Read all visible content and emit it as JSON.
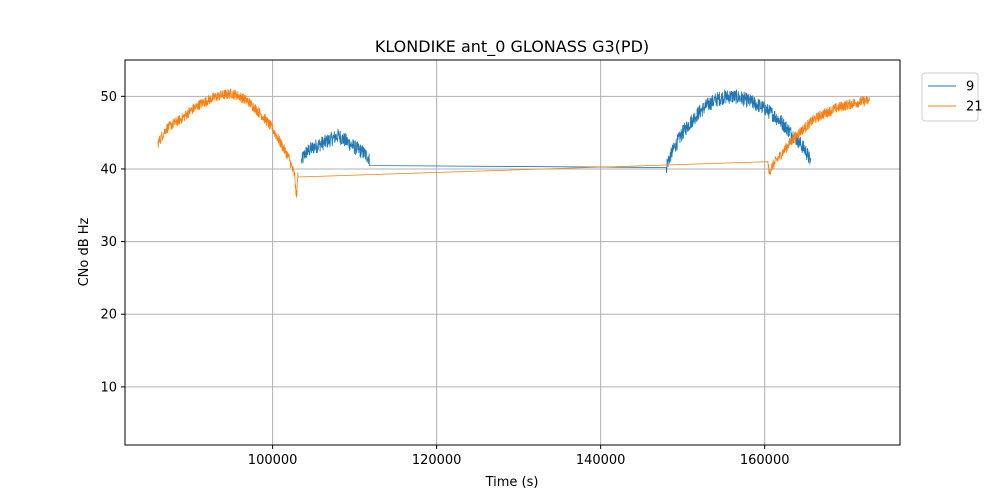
{
  "chart_data": {
    "type": "line",
    "title": "KLONDIKE ant_0 GLONASS G3(PD)",
    "xlabel": "Time (s)",
    "ylabel": "CNo dB Hz",
    "xlim": [
      82000,
      176500
    ],
    "ylim": [
      2,
      55
    ],
    "xticks": [
      100000,
      120000,
      140000,
      160000
    ],
    "xtick_labels": [
      "100000",
      "120000",
      "140000",
      "160000"
    ],
    "yticks": [
      10,
      20,
      30,
      40,
      50
    ],
    "ytick_labels": [
      "10",
      "20",
      "30",
      "40",
      "50"
    ],
    "grid": true,
    "legend_position": "outside-top-right",
    "series": [
      {
        "name": "9",
        "color": "#1f77b4",
        "noise": 1.0,
        "points": [
          [
            103500,
            41.0
          ],
          [
            104000,
            42.2
          ],
          [
            105000,
            43.0
          ],
          [
            106000,
            43.5
          ],
          [
            107000,
            44.0
          ],
          [
            108000,
            44.6
          ],
          [
            109000,
            43.8
          ],
          [
            110000,
            43.0
          ],
          [
            111000,
            42.3
          ],
          [
            111700,
            41.6
          ],
          [
            111800,
            41.1
          ],
          [
            148000,
            40.2
          ],
          [
            148100,
            40.8
          ],
          [
            149000,
            43.0
          ],
          [
            150000,
            45.0
          ],
          [
            151000,
            46.5
          ],
          [
            152000,
            47.8
          ],
          [
            153000,
            48.8
          ],
          [
            154000,
            49.5
          ],
          [
            155000,
            49.9
          ],
          [
            156000,
            50.0
          ],
          [
            157000,
            49.8
          ],
          [
            158000,
            49.4
          ],
          [
            159000,
            48.9
          ],
          [
            160000,
            48.3
          ],
          [
            161000,
            47.5
          ],
          [
            162000,
            46.5
          ],
          [
            163000,
            45.2
          ],
          [
            164000,
            44.0
          ],
          [
            165000,
            42.5
          ],
          [
            165600,
            41.0
          ]
        ]
      },
      {
        "name": "21",
        "color": "#ff7f0e",
        "noise": 0.7,
        "points": [
          [
            86000,
            43.5
          ],
          [
            87000,
            45.5
          ],
          [
            88000,
            46.3
          ],
          [
            89000,
            47.0
          ],
          [
            90000,
            48.0
          ],
          [
            91000,
            48.8
          ],
          [
            92000,
            49.4
          ],
          [
            93000,
            49.9
          ],
          [
            94000,
            50.2
          ],
          [
            95000,
            50.4
          ],
          [
            96000,
            50.0
          ],
          [
            97000,
            49.3
          ],
          [
            98000,
            48.2
          ],
          [
            99000,
            47.0
          ],
          [
            100000,
            45.5
          ],
          [
            101000,
            43.5
          ],
          [
            102000,
            41.5
          ],
          [
            102700,
            39.0
          ],
          [
            102900,
            36.0
          ],
          [
            103100,
            39.5
          ],
          [
            160400,
            41.0
          ],
          [
            160500,
            39.5
          ],
          [
            161000,
            40.5
          ],
          [
            162000,
            42.0
          ],
          [
            163000,
            43.5
          ],
          [
            164000,
            44.8
          ],
          [
            165000,
            45.8
          ],
          [
            166000,
            46.8
          ],
          [
            167000,
            47.5
          ],
          [
            168000,
            48.0
          ],
          [
            169000,
            48.5
          ],
          [
            170000,
            48.8
          ],
          [
            171000,
            49.1
          ],
          [
            172000,
            49.3
          ],
          [
            172800,
            49.4
          ]
        ]
      }
    ]
  }
}
